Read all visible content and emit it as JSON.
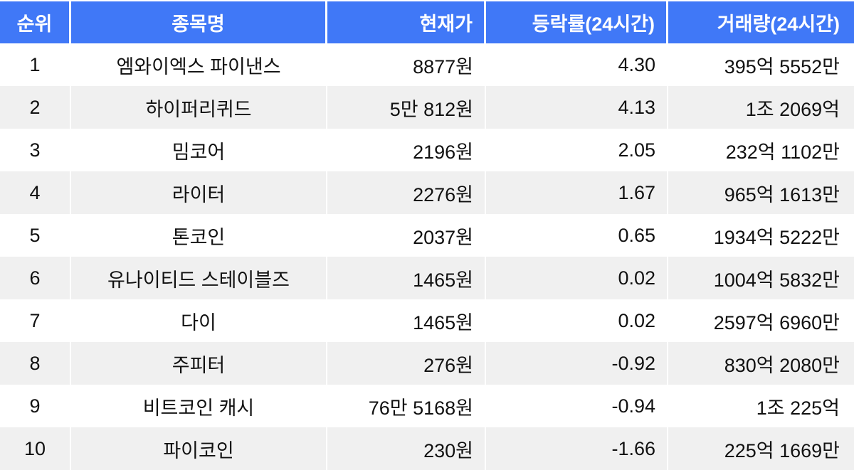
{
  "table": {
    "columns": [
      {
        "key": "rank",
        "label": "순위"
      },
      {
        "key": "name",
        "label": "종목명"
      },
      {
        "key": "price",
        "label": "현재가"
      },
      {
        "key": "change",
        "label": "등락률(24시간)"
      },
      {
        "key": "volume",
        "label": "거래량(24시간)"
      }
    ],
    "rows": [
      {
        "rank": "1",
        "name": "엠와이엑스 파이낸스",
        "price": "8877원",
        "change": "4.30",
        "volume": "395억 5552만"
      },
      {
        "rank": "2",
        "name": "하이퍼리퀴드",
        "price": "5만 812원",
        "change": "4.13",
        "volume": "1조 2069억"
      },
      {
        "rank": "3",
        "name": "밈코어",
        "price": "2196원",
        "change": "2.05",
        "volume": "232억 1102만"
      },
      {
        "rank": "4",
        "name": "라이터",
        "price": "2276원",
        "change": "1.67",
        "volume": "965억 1613만"
      },
      {
        "rank": "5",
        "name": "톤코인",
        "price": "2037원",
        "change": "0.65",
        "volume": "1934억 5222만"
      },
      {
        "rank": "6",
        "name": "유나이티드 스테이블즈",
        "price": "1465원",
        "change": "0.02",
        "volume": "1004억 5832만"
      },
      {
        "rank": "7",
        "name": "다이",
        "price": "1465원",
        "change": "0.02",
        "volume": "2597억 6960만"
      },
      {
        "rank": "8",
        "name": "주피터",
        "price": "276원",
        "change": "-0.92",
        "volume": "830억 2080만"
      },
      {
        "rank": "9",
        "name": "비트코인 캐시",
        "price": "76만 5168원",
        "change": "-0.94",
        "volume": "1조 225억"
      },
      {
        "rank": "10",
        "name": "파이코인",
        "price": "230원",
        "change": "-1.66",
        "volume": "225억 1669만"
      }
    ]
  },
  "colors": {
    "header_bg": "#4078f7",
    "header_text": "#ffffff",
    "row_bg": "#ffffff",
    "row_alt_bg": "#f0f0f0",
    "body_text": "#111111"
  },
  "chart_data": {
    "type": "table",
    "title": "",
    "columns": [
      "순위",
      "종목명",
      "현재가",
      "등락률(24시간)",
      "거래량(24시간)"
    ],
    "rows": [
      [
        "1",
        "엠와이엑스 파이낸스",
        "8877원",
        "4.30",
        "395억 5552만"
      ],
      [
        "2",
        "하이퍼리퀴드",
        "5만 812원",
        "4.13",
        "1조 2069억"
      ],
      [
        "3",
        "밈코어",
        "2196원",
        "2.05",
        "232억 1102만"
      ],
      [
        "4",
        "라이터",
        "2276원",
        "1.67",
        "965억 1613만"
      ],
      [
        "5",
        "톤코인",
        "2037원",
        "0.65",
        "1934억 5222만"
      ],
      [
        "6",
        "유나이티드 스테이블즈",
        "1465원",
        "0.02",
        "1004억 5832만"
      ],
      [
        "7",
        "다이",
        "1465원",
        "0.02",
        "2597억 6960만"
      ],
      [
        "8",
        "주피터",
        "276원",
        "-0.92",
        "830억 2080만"
      ],
      [
        "9",
        "비트코인 캐시",
        "76만 5168원",
        "-0.94",
        "1조 225억"
      ],
      [
        "10",
        "파이코인",
        "230원",
        "-1.66",
        "225억 1669만"
      ]
    ],
    "change_values_pct": [
      4.3,
      4.13,
      2.05,
      1.67,
      0.65,
      0.02,
      0.02,
      -0.92,
      -0.94,
      -1.66
    ]
  }
}
